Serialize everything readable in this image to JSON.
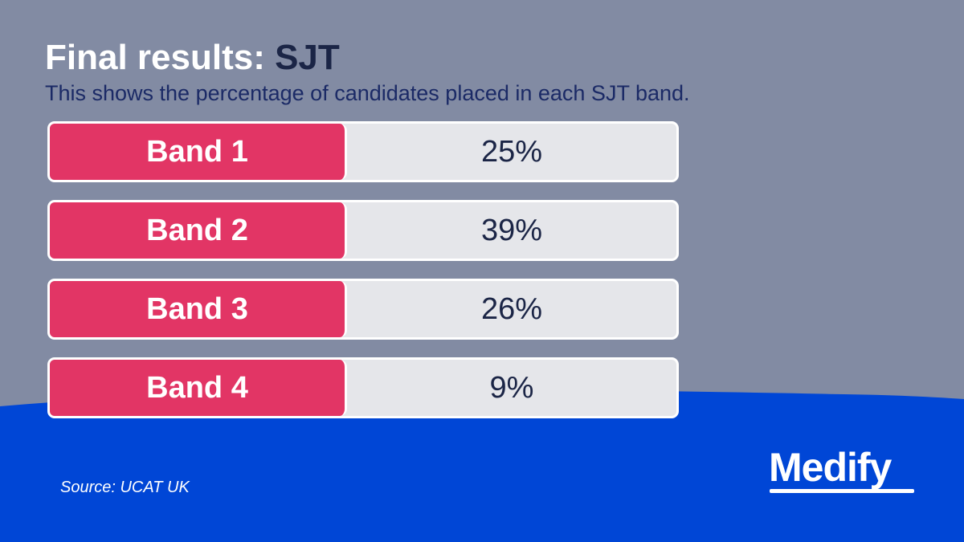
{
  "header": {
    "title_part1": "Final results:",
    "title_part2": "SJT",
    "subtitle": "This shows the percentage of candidates placed in each SJT band."
  },
  "chart_data": {
    "type": "table",
    "title": "Final results: SJT",
    "subtitle": "This shows the percentage of candidates placed in each SJT band.",
    "categories": [
      "Band 1",
      "Band 2",
      "Band 3",
      "Band 4"
    ],
    "values": [
      25,
      39,
      26,
      9
    ],
    "value_labels": [
      "25%",
      "39%",
      "26%",
      "9%"
    ]
  },
  "footer": {
    "source": "Source: UCAT UK",
    "logo": "Medify"
  },
  "colors": {
    "background": "#828ba3",
    "wave": "#0046d6",
    "label_fill": "#e23565",
    "value_fill": "#e5e6ea",
    "dark_text": "#1b2546"
  }
}
